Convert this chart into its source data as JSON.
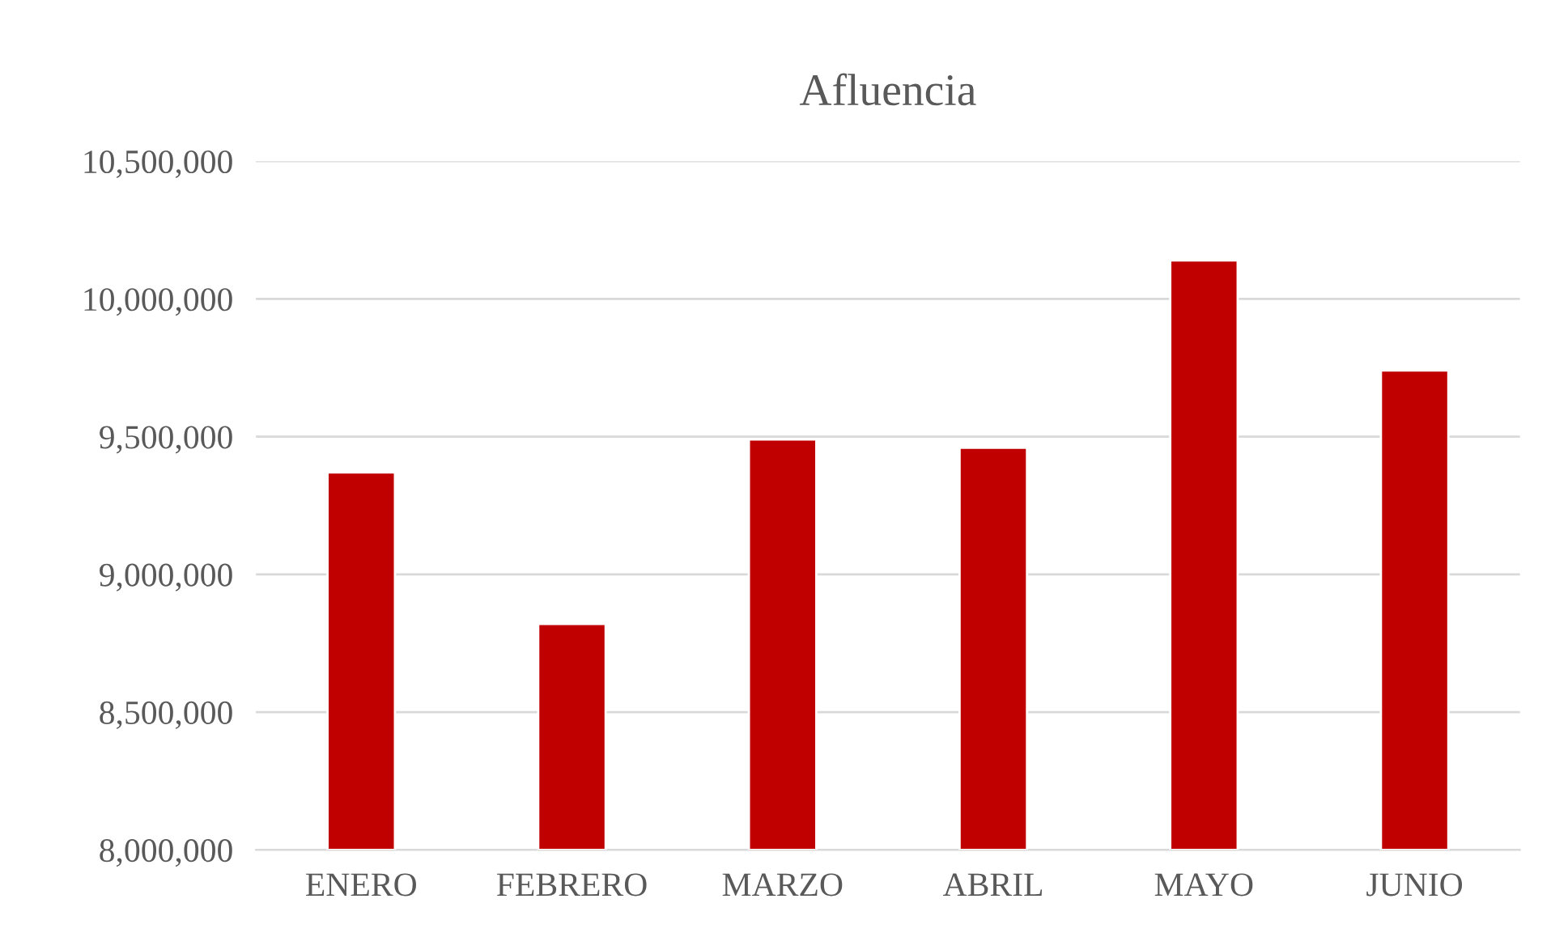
{
  "chart_data": {
    "type": "bar",
    "title": "Afluencia",
    "categories": [
      "ENERO",
      "FEBRERO",
      "MARZO",
      "ABRIL",
      "MAYO",
      "JUNIO"
    ],
    "values": [
      9370000,
      8820000,
      9490000,
      9460000,
      10140000,
      9740000
    ],
    "color": "#c00000",
    "ylim": [
      8000000,
      10500000
    ],
    "yticks": [
      {
        "value": 8000000,
        "label": "8,000,000"
      },
      {
        "value": 8500000,
        "label": "8,500,000"
      },
      {
        "value": 9000000,
        "label": "9,000,000"
      },
      {
        "value": 9500000,
        "label": "9,500,000"
      },
      {
        "value": 10000000,
        "label": "10,000,000"
      },
      {
        "value": 10500000,
        "label": "10,500,000"
      }
    ],
    "grid": "y"
  }
}
